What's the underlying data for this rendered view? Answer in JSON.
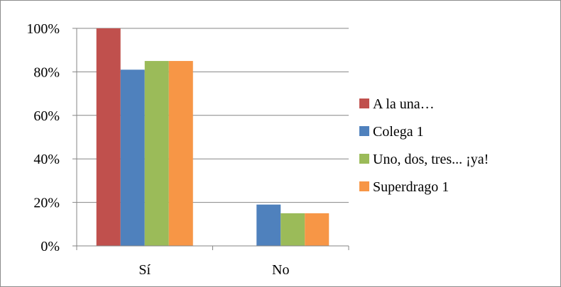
{
  "chart_data": {
    "type": "bar",
    "categories": [
      "Sí",
      "No"
    ],
    "series": [
      {
        "name": "A la una…",
        "values": [
          100,
          0
        ],
        "color": "#c0504d"
      },
      {
        "name": "Colega 1",
        "values": [
          81,
          19
        ],
        "color": "#4f81bd"
      },
      {
        "name": "Uno, dos, tres... ¡ya!",
        "values": [
          85,
          15
        ],
        "color": "#9bbb59"
      },
      {
        "name": "Superdrago 1",
        "values": [
          85,
          15
        ],
        "color": "#f79646"
      }
    ],
    "yticks": [
      "0%",
      "20%",
      "40%",
      "60%",
      "80%",
      "100%"
    ],
    "ylim": [
      0,
      100
    ],
    "grid": true,
    "legend": "right",
    "title": "",
    "xlabel": "",
    "ylabel": ""
  }
}
